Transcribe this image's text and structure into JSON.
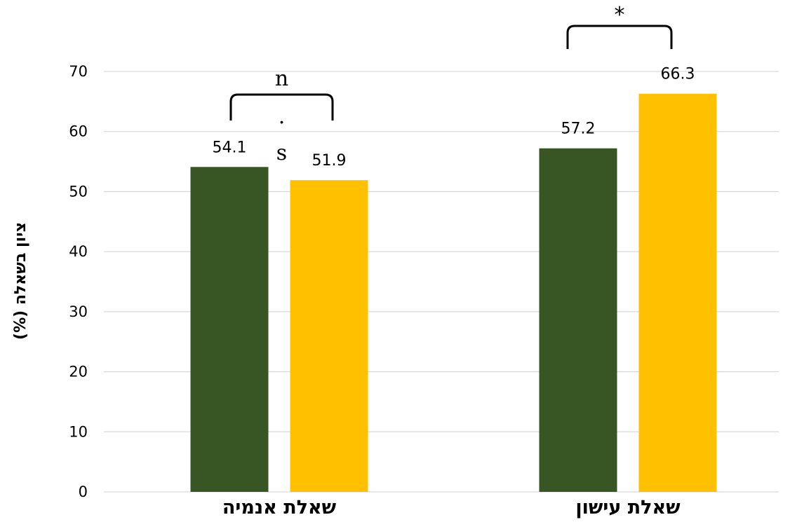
{
  "chart_data": {
    "type": "bar",
    "categories": [
      "שאלת אנמיה",
      "שאלת עישון"
    ],
    "series": [
      {
        "values": [
          54.1,
          57.2
        ],
        "color": "#375623"
      },
      {
        "values": [
          51.9,
          66.3
        ],
        "color": "#FFC000"
      }
    ],
    "data_labels": [
      [
        "54.1",
        "57.2"
      ],
      [
        "51.9",
        "66.3"
      ]
    ],
    "ylabel": "ציון בשאלה (%)",
    "ylim": [
      0,
      70
    ],
    "yticks": [
      0,
      10,
      20,
      30,
      40,
      50,
      60,
      70
    ],
    "grid": true,
    "legend": "none",
    "annotations": [
      {
        "category": "שאלת אנמיה",
        "text_top": "n",
        "text_dot": ".",
        "text_bottom": "s"
      },
      {
        "category": "שאלת עישון",
        "text_top": "*"
      }
    ]
  }
}
